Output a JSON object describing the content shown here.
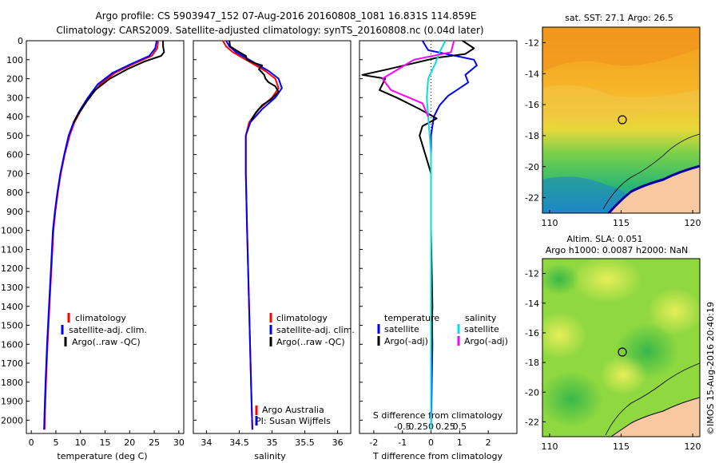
{
  "header": {
    "line1": "Argo profile: CS 5903947_152 07-Aug-2016 20160808_1081 16.831S 114.859E",
    "line2": "Climatology: CARS2009. Satellite-adjusted climatology: synTS_20160808.nc (0.04d later)"
  },
  "credit": "©IMOS 15-Aug-2016 20:40:19",
  "colors": {
    "climatology": "#ff0000",
    "satellite": "#0000ff",
    "argo": "#000000",
    "salinity_satellite": "#00e0e0",
    "salinity_argo": "#ff00ff",
    "land": "#f8c8a0"
  },
  "chart_data": [
    {
      "id": "temperature",
      "type": "line",
      "xlabel": "temperature (deg C)",
      "ylabel": "",
      "xlim": [
        -1,
        31
      ],
      "ylim": [
        2070,
        0
      ],
      "xticks": [
        "0",
        "5",
        "10",
        "15",
        "20",
        "25",
        "30"
      ],
      "xtick_values": [
        0,
        5,
        10,
        15,
        20,
        25,
        30
      ],
      "yticks": [
        "0",
        "100",
        "200",
        "300",
        "400",
        "500",
        "600",
        "700",
        "800",
        "900",
        "1000",
        "1100",
        "1200",
        "1300",
        "1400",
        "1500",
        "1600",
        "1700",
        "1800",
        "1900",
        "2000"
      ],
      "legend": [
        "climatology",
        "satellite-adj. clim.",
        "Argo(..raw -QC)"
      ],
      "series": [
        {
          "name": "climatology",
          "color": "#ff0000",
          "points": [
            [
              25.8,
              0
            ],
            [
              25.6,
              40
            ],
            [
              24.5,
              80
            ],
            [
              21,
              120
            ],
            [
              17,
              170
            ],
            [
              14,
              230
            ],
            [
              11.8,
              300
            ],
            [
              10,
              370
            ],
            [
              8.8,
              430
            ],
            [
              7.8,
              500
            ],
            [
              6.8,
              600
            ],
            [
              6,
              700
            ],
            [
              5.4,
              800
            ],
            [
              4.9,
              900
            ],
            [
              4.5,
              1000
            ],
            [
              4.1,
              1200
            ],
            [
              3.7,
              1400
            ],
            [
              3.3,
              1600
            ],
            [
              3,
              1800
            ],
            [
              2.8,
              1950
            ],
            [
              2.7,
              2050
            ]
          ]
        },
        {
          "name": "satellite-adj. clim.",
          "color": "#0000ff",
          "points": [
            [
              25.5,
              0
            ],
            [
              25.2,
              40
            ],
            [
              24,
              80
            ],
            [
              20.5,
              120
            ],
            [
              16.5,
              170
            ],
            [
              13.5,
              230
            ],
            [
              11.5,
              300
            ],
            [
              9.8,
              370
            ],
            [
              8.6,
              430
            ],
            [
              7.6,
              500
            ],
            [
              6.7,
              600
            ],
            [
              5.9,
              700
            ],
            [
              5.3,
              800
            ],
            [
              4.8,
              900
            ],
            [
              4.4,
              1000
            ],
            [
              4,
              1200
            ],
            [
              3.6,
              1400
            ],
            [
              3.2,
              1600
            ],
            [
              2.9,
              1800
            ],
            [
              2.7,
              1950
            ],
            [
              2.6,
              2050
            ]
          ]
        },
        {
          "name": "Argo(..raw -QC)",
          "color": "#000000",
          "points": [
            [
              26.8,
              0
            ],
            [
              26.8,
              30
            ],
            [
              27,
              60
            ],
            [
              26.4,
              80
            ],
            [
              23,
              110
            ],
            [
              19.5,
              150
            ],
            [
              16,
              200
            ],
            [
              13,
              260
            ],
            [
              11,
              330
            ],
            [
              9.5,
              390
            ],
            [
              8.6,
              430
            ]
          ]
        }
      ]
    },
    {
      "id": "salinity",
      "type": "line",
      "xlabel": "salinity",
      "ylabel": "",
      "xlim": [
        33.8,
        36.2
      ],
      "ylim": [
        2070,
        0
      ],
      "xticks": [
        "34",
        "34.5",
        "35",
        "35.5",
        "36"
      ],
      "xtick_values": [
        34,
        34.5,
        35,
        35.5,
        36
      ],
      "legend": [
        "climatology",
        "satellite-adj. clim.",
        "Argo(..raw -QC)"
      ],
      "annotation": [
        "Argo Australia",
        "PI: Susan Wijffels"
      ],
      "series": [
        {
          "name": "climatology",
          "color": "#ff0000",
          "points": [
            [
              34.25,
              0
            ],
            [
              34.3,
              30
            ],
            [
              34.4,
              60
            ],
            [
              34.6,
              100
            ],
            [
              34.9,
              160
            ],
            [
              35.05,
              200
            ],
            [
              35.1,
              250
            ],
            [
              35,
              300
            ],
            [
              34.8,
              360
            ],
            [
              34.65,
              430
            ],
            [
              34.6,
              500
            ],
            [
              34.6,
              700
            ],
            [
              34.62,
              1000
            ],
            [
              34.65,
              1400
            ],
            [
              34.68,
              1800
            ],
            [
              34.7,
              2050
            ]
          ]
        },
        {
          "name": "satellite-adj. clim.",
          "color": "#0000ff",
          "points": [
            [
              34.3,
              0
            ],
            [
              34.35,
              30
            ],
            [
              34.45,
              60
            ],
            [
              34.65,
              100
            ],
            [
              34.95,
              160
            ],
            [
              35.1,
              200
            ],
            [
              35.15,
              250
            ],
            [
              35.05,
              300
            ],
            [
              34.85,
              360
            ],
            [
              34.67,
              430
            ],
            [
              34.6,
              500
            ],
            [
              34.6,
              700
            ],
            [
              34.62,
              1000
            ],
            [
              34.65,
              1400
            ],
            [
              34.68,
              1800
            ],
            [
              34.7,
              2050
            ]
          ]
        },
        {
          "name": "Argo(..raw -QC)",
          "color": "#000000",
          "points": [
            [
              34.35,
              0
            ],
            [
              34.36,
              30
            ],
            [
              34.5,
              60
            ],
            [
              34.6,
              80
            ],
            [
              34.62,
              100
            ],
            [
              34.75,
              120
            ],
            [
              34.85,
              130
            ],
            [
              34.8,
              150
            ],
            [
              34.88,
              180
            ],
            [
              34.9,
              200
            ],
            [
              34.95,
              220
            ],
            [
              35.05,
              240
            ],
            [
              35.1,
              270
            ],
            [
              34.98,
              310
            ],
            [
              34.85,
              340
            ],
            [
              34.75,
              380
            ],
            [
              34.68,
              420
            ]
          ]
        }
      ]
    },
    {
      "id": "difference",
      "type": "line",
      "xlabel": "T difference from climatology",
      "xlabel_top": "S difference from climatology",
      "xlim": [
        -2.5,
        3
      ],
      "ylim": [
        2070,
        0
      ],
      "xticks": [
        "-2",
        "-1",
        "0",
        "1",
        "2"
      ],
      "xtick_values": [
        -2,
        -1,
        0,
        1,
        2
      ],
      "sticks": [
        "-0.5",
        "-0.25",
        "0",
        "0.25",
        "0.5"
      ],
      "stick_values": [
        -1,
        -0.5,
        0,
        0.5,
        1
      ],
      "legend_temperature_title": "temperature",
      "legend_salinity_title": "salinity",
      "legend_temperature": [
        "satellite",
        "Argo(-adj)"
      ],
      "legend_salinity": [
        "satellite",
        "Argo(-adj)"
      ],
      "series": [
        {
          "name": "temperature satellite",
          "color": "#0000ff",
          "points": [
            [
              -0.3,
              0
            ],
            [
              -0.1,
              50
            ],
            [
              1.5,
              100
            ],
            [
              1.6,
              130
            ],
            [
              1.2,
              180
            ],
            [
              1.3,
              220
            ],
            [
              1,
              250
            ],
            [
              0.6,
              290
            ],
            [
              0.3,
              340
            ],
            [
              0.1,
              400
            ],
            [
              0,
              500
            ],
            [
              0,
              800
            ],
            [
              0,
              1200
            ],
            [
              0.05,
              1600
            ],
            [
              0,
              2050
            ]
          ]
        },
        {
          "name": "temperature Argo(-adj)",
          "color": "#000000",
          "points": [
            [
              1.1,
              0
            ],
            [
              1.5,
              40
            ],
            [
              1.2,
              70
            ],
            [
              0.2,
              90
            ],
            [
              -1.5,
              150
            ],
            [
              -2.4,
              180
            ],
            [
              -1.6,
              200
            ],
            [
              -1.8,
              260
            ],
            [
              -1.2,
              300
            ],
            [
              -0.4,
              360
            ],
            [
              0.2,
              410
            ],
            [
              -0.3,
              450
            ],
            [
              -0.4,
              500
            ],
            [
              -0.2,
              600
            ],
            [
              0,
              700
            ],
            [
              0,
              1000
            ],
            [
              0.05,
              1400
            ],
            [
              0,
              1700
            ],
            [
              0,
              2050
            ]
          ]
        },
        {
          "name": "salinity satellite",
          "color": "#00e0e0",
          "points": [
            [
              0.5,
              0
            ],
            [
              0.3,
              60
            ],
            [
              0.15,
              120
            ],
            [
              -0.1,
              200
            ],
            [
              -0.15,
              300
            ],
            [
              -0.1,
              400
            ],
            [
              0,
              600
            ],
            [
              0,
              1000
            ],
            [
              0,
              2050
            ]
          ]
        },
        {
          "name": "salinity Argo(-adj)",
          "color": "#ff00ff",
          "points": [
            [
              0.8,
              0
            ],
            [
              0.7,
              60
            ],
            [
              -0.6,
              100
            ],
            [
              -1.7,
              200
            ],
            [
              -1.4,
              260
            ],
            [
              -0.3,
              330
            ],
            [
              -0.1,
              400
            ]
          ]
        }
      ]
    },
    {
      "id": "sst-map",
      "type": "heatmap",
      "title": "sat. SST: 27.1  Argo: 26.5",
      "xticks": [
        "110",
        "115",
        "120"
      ],
      "yticks": [
        "-12",
        "-14",
        "-16",
        "-18",
        "-20",
        "-22"
      ],
      "xlim": [
        109.5,
        120.5
      ],
      "ylim": [
        -23,
        -11
      ],
      "marker": [
        114.859,
        -16.831
      ]
    },
    {
      "id": "sla-map",
      "type": "heatmap",
      "title": "Altim. SLA: 0.051",
      "subtitle": "Argo h1000: 0.0087  h2000: NaN",
      "xticks": [
        "110",
        "115",
        "120"
      ],
      "yticks": [
        "-12",
        "-14",
        "-16",
        "-18",
        "-20",
        "-22"
      ],
      "xlim": [
        109.5,
        120.5
      ],
      "ylim": [
        -23,
        -11
      ],
      "marker": [
        114.859,
        -16.831
      ]
    }
  ]
}
